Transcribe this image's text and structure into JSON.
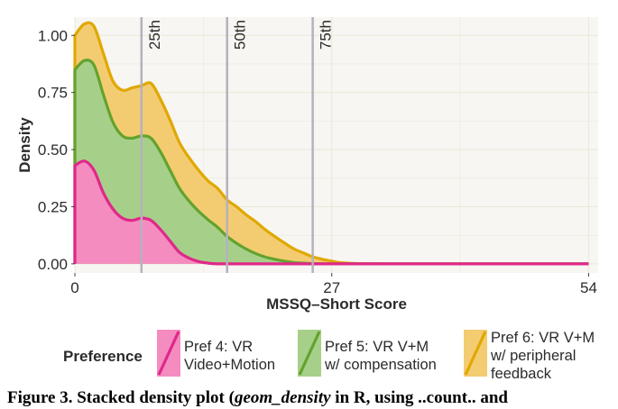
{
  "chart_data": {
    "type": "area",
    "stacked": true,
    "xlabel": "MSSQ–Short Score",
    "ylabel": "Density",
    "xlim": [
      0,
      55
    ],
    "ylim": [
      -0.04,
      1.08
    ],
    "x_ticks": [
      0,
      27,
      54
    ],
    "y_ticks": [
      0.0,
      0.25,
      0.5,
      0.75,
      1.0
    ],
    "y_tick_labels": [
      "0.00",
      "0.25",
      "0.50",
      "0.75",
      "1.00"
    ],
    "grid": true,
    "x": [
      0,
      1,
      2,
      3,
      4,
      5,
      6,
      7,
      8,
      9,
      10,
      11,
      12,
      13,
      14,
      15,
      16,
      17,
      18,
      19,
      20,
      21,
      22,
      23,
      24,
      25,
      26,
      27,
      28,
      30,
      35,
      40,
      45,
      50,
      54
    ],
    "series": [
      {
        "name": "Pref 4: VR Video+Motion",
        "fill": "#f48cbf",
        "stroke": "#e0288a",
        "values": [
          0.43,
          0.45,
          0.41,
          0.31,
          0.24,
          0.2,
          0.19,
          0.2,
          0.19,
          0.15,
          0.1,
          0.05,
          0.025,
          0.01,
          0.003,
          0,
          0,
          0,
          0,
          0,
          0,
          0,
          0,
          0,
          0,
          0,
          0,
          0,
          0,
          0,
          0,
          0,
          0,
          0,
          0
        ]
      },
      {
        "name": "Pref 5: VR V+M w/ compensation",
        "fill": "#a6d08a",
        "stroke": "#64a22c",
        "values": [
          0.42,
          0.44,
          0.46,
          0.43,
          0.38,
          0.36,
          0.36,
          0.36,
          0.36,
          0.34,
          0.31,
          0.28,
          0.25,
          0.22,
          0.19,
          0.16,
          0.12,
          0.09,
          0.065,
          0.045,
          0.03,
          0.02,
          0.012,
          0.006,
          0.003,
          0.001,
          0,
          0,
          0,
          0,
          0,
          0,
          0,
          0,
          0
        ]
      },
      {
        "name": "Pref 6: VR V+M w/ peripheral feedback",
        "fill": "#f3cc72",
        "stroke": "#e0a800",
        "values": [
          0.15,
          0.16,
          0.17,
          0.18,
          0.18,
          0.2,
          0.22,
          0.22,
          0.24,
          0.23,
          0.22,
          0.2,
          0.19,
          0.18,
          0.17,
          0.17,
          0.16,
          0.16,
          0.15,
          0.14,
          0.12,
          0.1,
          0.08,
          0.06,
          0.045,
          0.03,
          0.02,
          0.012,
          0.005,
          0.001,
          0,
          0,
          0,
          0,
          0
        ]
      }
    ],
    "percentile_lines": [
      {
        "label": "25th",
        "x": 7
      },
      {
        "label": "50th",
        "x": 16
      },
      {
        "label": "75th",
        "x": 25
      }
    ],
    "legend_title": "Preference",
    "legend_position": "bottom",
    "colors": {
      "panel_bg": "#f7f6f2",
      "grid": "#ebe7d8",
      "vline": "#b5b1bd",
      "text": "#2b2b2b"
    }
  },
  "caption": {
    "prefix": "Figure 3.  Stacked density plot (",
    "italic": "geom_density",
    "suffix": " in R, using ..count.. and"
  }
}
